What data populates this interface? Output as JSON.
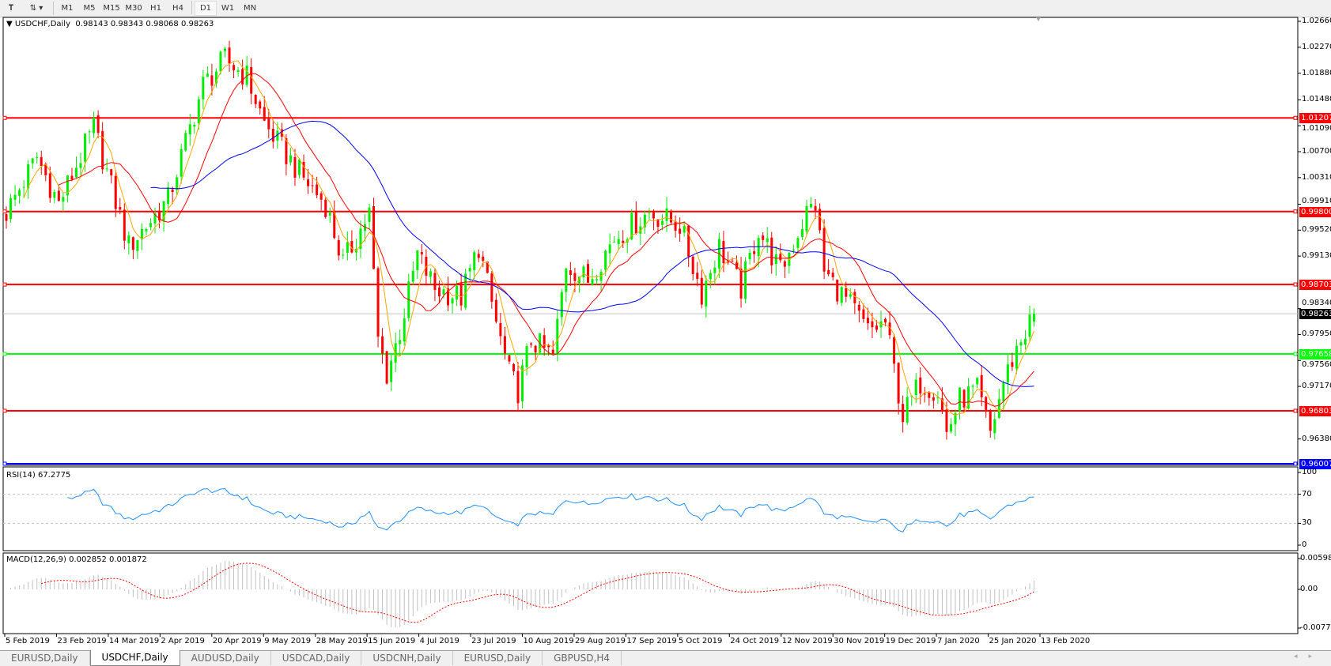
{
  "toolbar": {
    "icons": [
      "text-tool-icon",
      "objects-dropdown-icon"
    ],
    "timeframes": [
      "M1",
      "M5",
      "M15",
      "M30",
      "H1",
      "H4",
      "D1",
      "W1",
      "MN"
    ],
    "active_timeframe": "D1"
  },
  "main_pane": {
    "title": "USDCHF,Daily",
    "ohlc": "0.98143 0.98343 0.98068 0.98263",
    "price_ticks": [
      "1.02660",
      "1.02270",
      "1.01880",
      "1.01480",
      "1.01090",
      "1.00700",
      "1.00310",
      "0.99910",
      "0.99520",
      "0.99130",
      "0.98340",
      "0.97950",
      "0.97560",
      "0.97170",
      "0.96380"
    ],
    "horizontal_lines": [
      {
        "price": "1.01207",
        "color": "#ff0000"
      },
      {
        "price": "0.99800",
        "color": "#ff0000"
      },
      {
        "price": "0.98703",
        "color": "#ff0000"
      },
      {
        "price": "0.97658",
        "color": "#00ff00"
      },
      {
        "price": "0.96803",
        "color": "#ff0000"
      },
      {
        "price": "0.96007",
        "color": "#0000ff"
      }
    ],
    "current_price": "0.98263",
    "colors": {
      "bull": "#00ee00",
      "bear": "#ff0000",
      "ma_fast": "#ffa500",
      "ma_mid": "#ff0000",
      "ma_slow": "#0000ff"
    }
  },
  "rsi_pane": {
    "title": "RSI(14) 67.2775",
    "ticks": [
      "100",
      "70",
      "30",
      "0"
    ],
    "color": "#1e90ff"
  },
  "macd_pane": {
    "title": "MACD(12,26,9) 0.002852 0.001872",
    "ticks": [
      "0.005986",
      "0.00",
      "-0.007733"
    ],
    "histogram_color": "#c0c0c0",
    "signal_color": "#ff0000"
  },
  "date_axis": [
    "5 Feb 2019",
    "23 Feb 2019",
    "14 Mar 2019",
    "2 Apr 2019",
    "20 Apr 2019",
    "9 May 2019",
    "28 May 2019",
    "15 Jun 2019",
    "4 Jul 2019",
    "23 Jul 2019",
    "10 Aug 2019",
    "29 Aug 2019",
    "17 Sep 2019",
    "5 Oct 2019",
    "24 Oct 2019",
    "12 Nov 2019",
    "30 Nov 2019",
    "19 Dec 2019",
    "7 Jan 2020",
    "25 Jan 2020",
    "13 Feb 2020"
  ],
  "tabs": [
    "EURUSD,Daily",
    "USDCHF,Daily",
    "AUDUSD,Daily",
    "USDCAD,Daily",
    "USDCNH,Daily",
    "EURUSD,Daily",
    "GBPUSD,H4"
  ],
  "active_tab": 1,
  "chart_data": {
    "type": "candlestick",
    "symbol": "USDCHF",
    "timeframe": "Daily",
    "ylim": [
      0.96007,
      1.0266
    ],
    "last_bar": {
      "open": 0.98143,
      "high": 0.98343,
      "low": 0.98068,
      "close": 0.98263
    },
    "price_path": [
      [
        0,
        0.99787
      ],
      [
        7,
        1.00617
      ],
      [
        12,
        0.99915
      ],
      [
        20,
        1.01064
      ],
      [
        28,
        0.99276
      ],
      [
        37,
        0.99978
      ],
      [
        45,
        1.01702
      ],
      [
        50,
        1.02085
      ],
      [
        55,
        1.0183
      ],
      [
        59,
        1.01128
      ],
      [
        63,
        1.00745
      ],
      [
        68,
        1.00298
      ],
      [
        73,
        0.99915
      ],
      [
        77,
        0.99021
      ],
      [
        83,
        0.99787
      ],
      [
        85,
        0.97871
      ],
      [
        87,
        0.97361
      ],
      [
        90,
        0.97999
      ],
      [
        94,
        0.99149
      ],
      [
        98,
        0.98638
      ],
      [
        104,
        0.9851
      ],
      [
        108,
        0.99276
      ],
      [
        112,
        0.98127
      ],
      [
        115,
        0.97361
      ],
      [
        117,
        0.97105
      ],
      [
        120,
        0.97871
      ],
      [
        125,
        0.97616
      ],
      [
        128,
        0.99021
      ],
      [
        133,
        0.98765
      ],
      [
        139,
        0.99404
      ],
      [
        147,
        0.99787
      ],
      [
        154,
        0.99595
      ],
      [
        159,
        0.98574
      ],
      [
        163,
        0.99276
      ],
      [
        168,
        0.98638
      ],
      [
        172,
        0.99532
      ],
      [
        177,
        0.98893
      ],
      [
        183,
        0.99787
      ],
      [
        185,
        0.99915
      ],
      [
        187,
        0.98893
      ],
      [
        193,
        0.98382
      ],
      [
        197,
        0.97999
      ],
      [
        201,
        0.98127
      ],
      [
        205,
        0.96722
      ],
      [
        209,
        0.97233
      ],
      [
        213,
        0.97105
      ],
      [
        215,
        0.96467
      ],
      [
        218,
        0.96978
      ],
      [
        222,
        0.97105
      ],
      [
        225,
        0.96467
      ],
      [
        228,
        0.97233
      ],
      [
        231,
        0.97744
      ],
      [
        234,
        0.98127
      ],
      [
        235,
        0.98263
      ]
    ]
  }
}
